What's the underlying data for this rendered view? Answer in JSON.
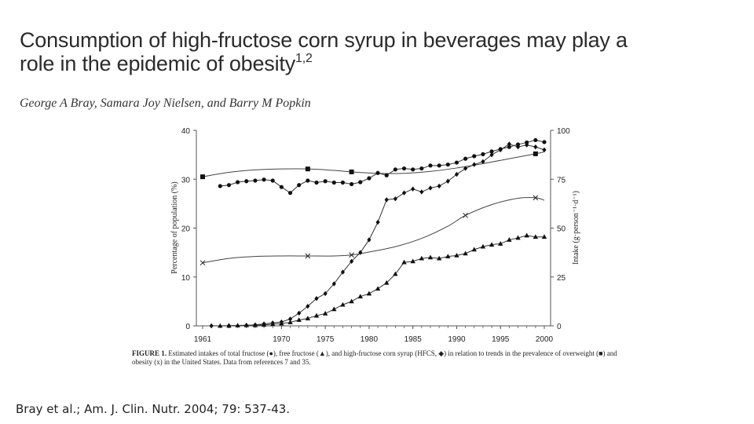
{
  "slide": {
    "title_main": "Consumption of high-fructose corn syrup in beverages may play a role in the epidemic of obesity",
    "title_line1": "Consumption of high-fructose corn syrup in beverages may play a",
    "title_line2": "role in the epidemic of obesity",
    "title_superscript": "1,2",
    "authors": "George A Bray, Samara Joy Nielsen, and Barry M Popkin",
    "caption_label": "FIGURE 1.",
    "caption_text": " Estimated intakes of total fructose (●), free fructose (▲), and high-fructose corn syrup (HFCS, ◆) in relation to trends in the prevalence of overweight (■) and obesity (x) in the United States. Data from references 7 and 35.",
    "citation": "Bray et al.; Am. J. Clin. Nutr. 2004; 79: 537-43."
  },
  "chart_data": {
    "type": "line",
    "title": "",
    "xlabel": "",
    "ylabel": "Percentage of population (%)",
    "ylabel_right": "Intake (g·person⁻¹·d⁻¹)",
    "xlim": [
      1961,
      2000
    ],
    "ylim": [
      0,
      40
    ],
    "ylim_right": [
      0,
      100
    ],
    "x_ticks": [
      "1961",
      "1970",
      "1975",
      "1980",
      "1985",
      "1990",
      "1995",
      "2000"
    ],
    "x_tick_values": [
      1961,
      1970,
      1975,
      1980,
      1985,
      1990,
      1995,
      2000
    ],
    "y_ticks": [
      "0",
      "10",
      "20",
      "30",
      "40"
    ],
    "y_tick_values": [
      0,
      10,
      20,
      30,
      40
    ],
    "y_ticks_right": [
      "0",
      "25",
      "50",
      "75",
      "100"
    ],
    "y_tick_values_right": [
      0,
      25,
      50,
      75,
      100
    ],
    "grid": false,
    "legend": "in caption",
    "series": [
      {
        "name": "Overweight",
        "marker": "square",
        "axis": "left",
        "smooth": true,
        "x": [
          1961,
          1973,
          1978,
          1999
        ],
        "values": [
          30.5,
          32.1,
          31.5,
          35.2
        ],
        "curve_x": [
          1961,
          1964,
          1967,
          1970,
          1973,
          1976,
          1978,
          1981,
          1984,
          1987,
          1990,
          1993,
          1996,
          1999,
          2000
        ],
        "curve_values": [
          30.5,
          31.4,
          31.9,
          32.1,
          32.1,
          31.8,
          31.5,
          31.2,
          31.2,
          31.6,
          32.3,
          33.2,
          34.2,
          35.2,
          35.6
        ]
      },
      {
        "name": "Obesity",
        "marker": "x",
        "axis": "left",
        "smooth": true,
        "x": [
          1961,
          1973,
          1978,
          1991,
          1999
        ],
        "values": [
          12.9,
          14.3,
          14.5,
          22.6,
          26.2
        ],
        "curve_x": [
          1961,
          1964,
          1967,
          1970,
          1973,
          1976,
          1978,
          1980,
          1983,
          1986,
          1989,
          1991,
          1994,
          1997,
          1999,
          2000
        ],
        "curve_values": [
          12.9,
          13.8,
          14.2,
          14.3,
          14.3,
          14.3,
          14.5,
          15.1,
          16.2,
          17.9,
          20.4,
          22.6,
          24.8,
          26.1,
          26.2,
          25.7
        ]
      },
      {
        "name": "Total fructose",
        "marker": "circle",
        "axis": "right",
        "x": [
          1963,
          1964,
          1965,
          1966,
          1967,
          1968,
          1969,
          1970,
          1971,
          1972,
          1973,
          1974,
          1975,
          1976,
          1977,
          1978,
          1979,
          1980,
          1981,
          1982,
          1983,
          1984,
          1985,
          1986,
          1987,
          1988,
          1989,
          1990,
          1991,
          1992,
          1993,
          1994,
          1995,
          1996,
          1997,
          1998,
          1999,
          2000
        ],
        "values": [
          71.5,
          72,
          73.5,
          74,
          74.3,
          74.8,
          74.3,
          71,
          68,
          72,
          74.3,
          73.3,
          74,
          73.3,
          73.3,
          72.5,
          73.5,
          75.5,
          78.2,
          77,
          80,
          80.5,
          80,
          80.5,
          82,
          82,
          82.5,
          83.5,
          85.5,
          86.8,
          87.8,
          89.2,
          90.4,
          91.5,
          92.8,
          93.8,
          95,
          94
        ]
      },
      {
        "name": "Free fructose",
        "marker": "triangle",
        "axis": "right",
        "x": [
          1963,
          1964,
          1965,
          1966,
          1967,
          1968,
          1969,
          1970,
          1971,
          1972,
          1973,
          1974,
          1975,
          1976,
          1977,
          1978,
          1979,
          1980,
          1981,
          1982,
          1983,
          1984,
          1985,
          1986,
          1987,
          1988,
          1989,
          1990,
          1991,
          1992,
          1993,
          1994,
          1995,
          1996,
          1997,
          1998,
          1999,
          2000
        ],
        "values": [
          0,
          0,
          0.2,
          0.3,
          0.3,
          0.5,
          0.8,
          1.2,
          1.8,
          3,
          3.8,
          5.2,
          6.3,
          8.5,
          10.8,
          12.5,
          15,
          16.5,
          19,
          22,
          26.5,
          32.5,
          33,
          34.5,
          35,
          34.5,
          35.5,
          36,
          37,
          39,
          40.5,
          41.5,
          42,
          44,
          45,
          46.2,
          45.5,
          45.5
        ]
      },
      {
        "name": "HFCS",
        "marker": "diamond",
        "axis": "right",
        "x": [
          1962,
          1964,
          1966,
          1967,
          1968,
          1969,
          1970,
          1971,
          1972,
          1973,
          1974,
          1975,
          1976,
          1977,
          1978,
          1979,
          1980,
          1981,
          1982,
          1983,
          1984,
          1985,
          1986,
          1987,
          1988,
          1989,
          1990,
          1991,
          1992,
          1993,
          1994,
          1995,
          1996,
          1997,
          1998,
          1999,
          2000
        ],
        "values": [
          0,
          0.1,
          0.3,
          0.5,
          1,
          1.5,
          2,
          3.5,
          6.5,
          10,
          14,
          16.5,
          21.5,
          27.5,
          33,
          37.5,
          44,
          53,
          64.5,
          65,
          68,
          70,
          68.5,
          70.5,
          71.5,
          74,
          77.5,
          80.5,
          82.5,
          84,
          87.5,
          90,
          93,
          91.5,
          92.5,
          91.5,
          90
        ]
      }
    ]
  }
}
